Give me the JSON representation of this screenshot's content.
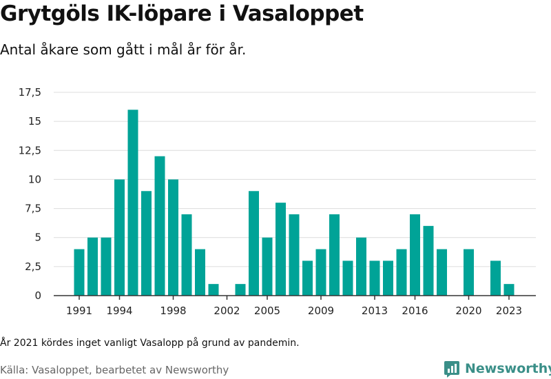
{
  "header": {
    "title": "Grytgöls IK-löpare i Vasaloppet",
    "subtitle": "Antal åkare som gått i mål år för år."
  },
  "footer": {
    "note": "År 2021 kördes inget vanligt Vasalopp på grund av pandemin.",
    "source": "Källa: Vasaloppet, bearbetet av Newsworthy",
    "brand": "Newsworthy",
    "brand_icon": "newsworthy-logo-icon"
  },
  "colors": {
    "bar": "#00a397",
    "grid": "#dcdcdc",
    "brand": "#3a8f88"
  },
  "chart_data": {
    "type": "bar",
    "title": "Grytgöls IK-löpare i Vasaloppet",
    "subtitle": "Antal åkare som gått i mål år för år.",
    "xlabel": "",
    "ylabel": "",
    "ylim": [
      0,
      17.5
    ],
    "yticks": [
      "0",
      "2,5",
      "5",
      "7,5",
      "10",
      "12,5",
      "15",
      "17,5"
    ],
    "grid": true,
    "x": [
      1991,
      1992,
      1993,
      1994,
      1995,
      1996,
      1997,
      1998,
      1999,
      2000,
      2001,
      2002,
      2003,
      2004,
      2005,
      2006,
      2007,
      2008,
      2009,
      2010,
      2011,
      2012,
      2013,
      2014,
      2015,
      2016,
      2017,
      2018,
      2019,
      2020,
      2021,
      2022,
      2023
    ],
    "values": [
      4,
      5,
      5,
      10,
      16,
      9,
      12,
      10,
      7,
      4,
      1,
      0,
      1,
      9,
      5,
      8,
      7,
      3,
      4,
      7,
      3,
      5,
      3,
      3,
      4,
      7,
      6,
      4,
      0,
      4,
      0,
      3,
      1
    ],
    "xtick_labels": [
      "1991",
      "1994",
      "1998",
      "2002",
      "2005",
      "2009",
      "2013",
      "2016",
      "2020",
      "2023"
    ]
  }
}
